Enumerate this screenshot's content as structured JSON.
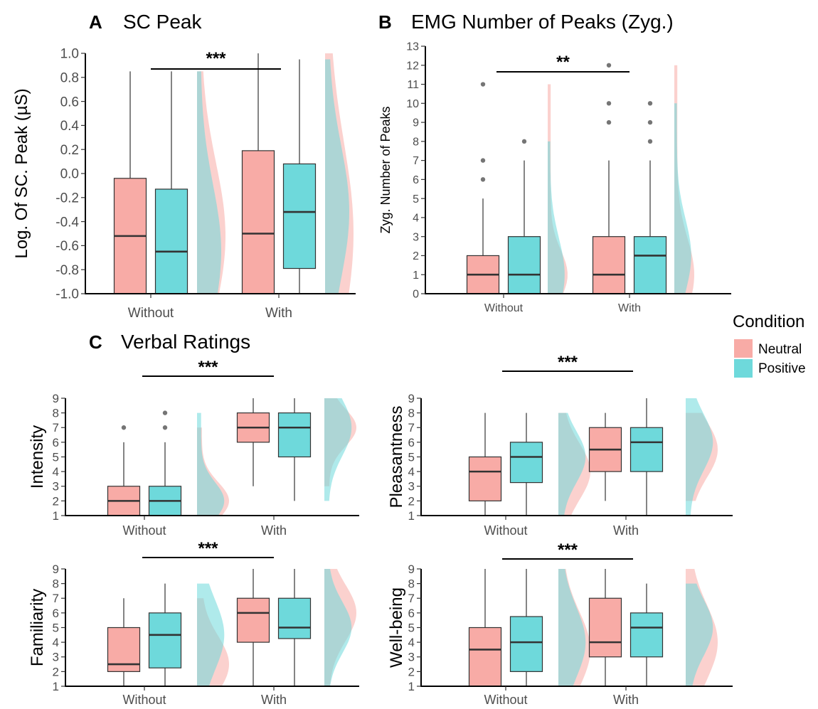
{
  "colors": {
    "neutral": "#F8ABA6",
    "positive": "#6ED9DB",
    "outlier": "#757575",
    "overlap": "#A98B8B"
  },
  "legend": {
    "title": "Condition",
    "items": [
      {
        "label": "Neutral",
        "color": "#F8ABA6"
      },
      {
        "label": "Positive",
        "color": "#6ED9DB"
      }
    ]
  },
  "section_c": {
    "letter": "C",
    "title": "Verbal Ratings"
  },
  "chart_data": [
    {
      "id": "A",
      "letter": "A",
      "title": "SC Peak",
      "type": "box",
      "ylabel": "Log. Of SC. Peak (µS)",
      "ylim": [
        -1.0,
        1.0
      ],
      "yticks": [
        -1.0,
        -0.8,
        -0.6,
        -0.4,
        -0.2,
        0.0,
        0.2,
        0.4,
        0.6,
        0.8,
        1.0
      ],
      "ytick_labels": [
        "-1.0",
        "-0.8",
        "-0.6",
        "-0.4",
        "-0.2",
        "0.0",
        "0.2",
        "0.4",
        "0.6",
        "0.8",
        "1.0"
      ],
      "categories": [
        "Without",
        "With"
      ],
      "significance": "***",
      "series": [
        {
          "name": "Neutral",
          "boxes": [
            {
              "category": "Without",
              "q1": -1.0,
              "median": -0.52,
              "q3": -0.04,
              "whisker_low": -1.0,
              "whisker_high": 0.85,
              "outliers": []
            },
            {
              "category": "With",
              "q1": -1.0,
              "median": -0.5,
              "q3": 0.19,
              "whisker_low": -1.0,
              "whisker_high": 1.0,
              "outliers": []
            }
          ]
        },
        {
          "name": "Positive",
          "boxes": [
            {
              "category": "Without",
              "q1": -1.0,
              "median": -0.65,
              "q3": -0.13,
              "whisker_low": -1.0,
              "whisker_high": 0.85,
              "outliers": []
            },
            {
              "category": "With",
              "q1": -0.79,
              "median": -0.32,
              "q3": 0.08,
              "whisker_low": -1.0,
              "whisker_high": 0.95,
              "outliers": []
            }
          ]
        }
      ]
    },
    {
      "id": "B",
      "letter": "B",
      "title": "EMG Number of Peaks (Zyg.)",
      "type": "box",
      "ylabel": "Zyg. Number of Peaks",
      "ylim": [
        0,
        13
      ],
      "yticks": [
        0,
        1,
        2,
        3,
        4,
        5,
        6,
        7,
        8,
        9,
        10,
        11,
        12,
        13
      ],
      "ytick_labels": [
        "0",
        "1",
        "2",
        "3",
        "4",
        "5",
        "6",
        "7",
        "8",
        "9",
        "10",
        "11",
        "12",
        "13"
      ],
      "categories": [
        "Without",
        "With"
      ],
      "significance": "**",
      "series": [
        {
          "name": "Neutral",
          "boxes": [
            {
              "category": "Without",
              "q1": 0,
              "median": 1,
              "q3": 2,
              "whisker_low": 0,
              "whisker_high": 5,
              "outliers": [
                6,
                7,
                11
              ]
            },
            {
              "category": "With",
              "q1": 0,
              "median": 1,
              "q3": 3,
              "whisker_low": 0,
              "whisker_high": 7,
              "outliers": [
                9,
                10,
                12
              ]
            }
          ]
        },
        {
          "name": "Positive",
          "boxes": [
            {
              "category": "Without",
              "q1": 0,
              "median": 1,
              "q3": 3,
              "whisker_low": 0,
              "whisker_high": 7,
              "outliers": [
                8
              ]
            },
            {
              "category": "With",
              "q1": 0,
              "median": 2,
              "q3": 3,
              "whisker_low": 0,
              "whisker_high": 7,
              "outliers": [
                8,
                9,
                10
              ]
            }
          ]
        }
      ]
    },
    {
      "id": "C1",
      "type": "box",
      "ylabel": "Intensity",
      "ylim": [
        1,
        9
      ],
      "yticks": [
        1,
        2,
        3,
        4,
        5,
        6,
        7,
        8,
        9
      ],
      "ytick_labels": [
        "1",
        "2",
        "3",
        "4",
        "5",
        "6",
        "7",
        "8",
        "9"
      ],
      "categories": [
        "Without",
        "With"
      ],
      "significance": "***",
      "series": [
        {
          "name": "Neutral",
          "boxes": [
            {
              "category": "Without",
              "q1": 1,
              "median": 2,
              "q3": 3,
              "whisker_low": 1,
              "whisker_high": 6,
              "outliers": [
                7
              ]
            },
            {
              "category": "With",
              "q1": 6,
              "median": 7,
              "q3": 8,
              "whisker_low": 3,
              "whisker_high": 9,
              "outliers": []
            }
          ]
        },
        {
          "name": "Positive",
          "boxes": [
            {
              "category": "Without",
              "q1": 1,
              "median": 2,
              "q3": 3,
              "whisker_low": 1,
              "whisker_high": 6,
              "outliers": [
                7,
                8
              ]
            },
            {
              "category": "With",
              "q1": 5,
              "median": 7,
              "q3": 8,
              "whisker_low": 2,
              "whisker_high": 9,
              "outliers": []
            }
          ]
        }
      ]
    },
    {
      "id": "C2",
      "type": "box",
      "ylabel": "Pleasantness",
      "ylim": [
        1,
        9
      ],
      "yticks": [
        1,
        2,
        3,
        4,
        5,
        6,
        7,
        8,
        9
      ],
      "ytick_labels": [
        "1",
        "2",
        "3",
        "4",
        "5",
        "6",
        "7",
        "8",
        "9"
      ],
      "categories": [
        "Without",
        "With"
      ],
      "significance": "***",
      "series": [
        {
          "name": "Neutral",
          "boxes": [
            {
              "category": "Without",
              "q1": 2,
              "median": 4,
              "q3": 5,
              "whisker_low": 1,
              "whisker_high": 8,
              "outliers": []
            },
            {
              "category": "With",
              "q1": 4,
              "median": 5.5,
              "q3": 7,
              "whisker_low": 2,
              "whisker_high": 8,
              "outliers": []
            }
          ]
        },
        {
          "name": "Positive",
          "boxes": [
            {
              "category": "Without",
              "q1": 3.25,
              "median": 5,
              "q3": 6,
              "whisker_low": 1,
              "whisker_high": 8,
              "outliers": []
            },
            {
              "category": "With",
              "q1": 4,
              "median": 6,
              "q3": 7,
              "whisker_low": 1,
              "whisker_high": 9,
              "outliers": []
            }
          ]
        }
      ]
    },
    {
      "id": "C3",
      "type": "box",
      "ylabel": "Familiarity",
      "ylim": [
        1,
        9
      ],
      "yticks": [
        1,
        2,
        3,
        4,
        5,
        6,
        7,
        8,
        9
      ],
      "ytick_labels": [
        "1",
        "2",
        "3",
        "4",
        "5",
        "6",
        "7",
        "8",
        "9"
      ],
      "categories": [
        "Without",
        "With"
      ],
      "significance": "***",
      "series": [
        {
          "name": "Neutral",
          "boxes": [
            {
              "category": "Without",
              "q1": 2,
              "median": 2.5,
              "q3": 5,
              "whisker_low": 1,
              "whisker_high": 7,
              "outliers": []
            },
            {
              "category": "With",
              "q1": 4,
              "median": 6,
              "q3": 7,
              "whisker_low": 1,
              "whisker_high": 9,
              "outliers": []
            }
          ]
        },
        {
          "name": "Positive",
          "boxes": [
            {
              "category": "Without",
              "q1": 2.25,
              "median": 4.5,
              "q3": 6,
              "whisker_low": 1,
              "whisker_high": 8,
              "outliers": []
            },
            {
              "category": "With",
              "q1": 4.25,
              "median": 5,
              "q3": 7,
              "whisker_low": 1,
              "whisker_high": 9,
              "outliers": []
            }
          ]
        }
      ]
    },
    {
      "id": "C4",
      "type": "box",
      "ylabel": "Well-being",
      "ylim": [
        1,
        9
      ],
      "yticks": [
        1,
        2,
        3,
        4,
        5,
        6,
        7,
        8,
        9
      ],
      "ytick_labels": [
        "1",
        "2",
        "3",
        "4",
        "5",
        "6",
        "7",
        "8",
        "9"
      ],
      "categories": [
        "Without",
        "With"
      ],
      "significance": "***",
      "series": [
        {
          "name": "Neutral",
          "boxes": [
            {
              "category": "Without",
              "q1": 1,
              "median": 3.5,
              "q3": 5,
              "whisker_low": 1,
              "whisker_high": 9,
              "outliers": []
            },
            {
              "category": "With",
              "q1": 3,
              "median": 4,
              "q3": 7,
              "whisker_low": 1,
              "whisker_high": 9,
              "outliers": []
            }
          ]
        },
        {
          "name": "Positive",
          "boxes": [
            {
              "category": "Without",
              "q1": 2,
              "median": 4,
              "q3": 5.75,
              "whisker_low": 1,
              "whisker_high": 9,
              "outliers": []
            },
            {
              "category": "With",
              "q1": 3,
              "median": 5,
              "q3": 6,
              "whisker_low": 1,
              "whisker_high": 8,
              "outliers": []
            }
          ]
        }
      ]
    }
  ]
}
